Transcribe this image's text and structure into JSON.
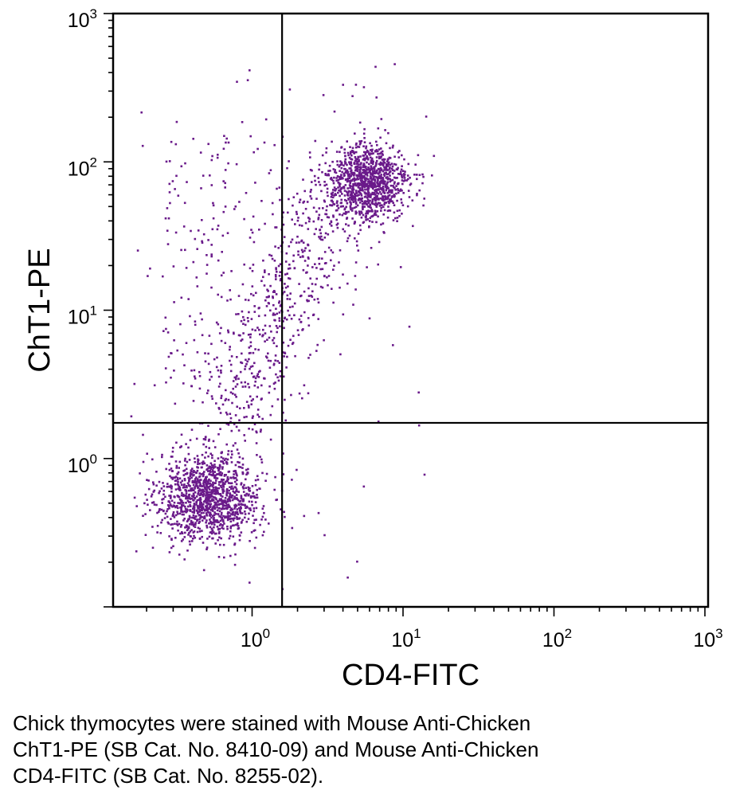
{
  "chart_data": {
    "type": "scatter",
    "plot_kind": "flow cytometry dot plot (log-log) with quadrant gates",
    "xlabel": "CD4-FITC",
    "ylabel": "ChT1-PE",
    "x_scale": "log10",
    "y_scale": "log10",
    "xlim": [
      0.12,
      1050
    ],
    "ylim": [
      0.1,
      1000
    ],
    "x_ticks": [
      {
        "value": 1,
        "base": "10",
        "exp": "0"
      },
      {
        "value": 10,
        "base": "10",
        "exp": "1"
      },
      {
        "value": 100,
        "base": "10",
        "exp": "2"
      },
      {
        "value": 1000,
        "base": "10",
        "exp": "3"
      }
    ],
    "y_ticks": [
      {
        "value": 1,
        "base": "10",
        "exp": "0"
      },
      {
        "value": 10,
        "base": "10",
        "exp": "1"
      },
      {
        "value": 100,
        "base": "10",
        "exp": "2"
      },
      {
        "value": 1000,
        "base": "10",
        "exp": "3"
      }
    ],
    "quadrant_gate": {
      "x": 1.58,
      "y": 1.74
    },
    "grid": false,
    "legend": "none",
    "point_color": "#6a1a8a",
    "populations": [
      {
        "name": "double-negative",
        "x_center": 0.52,
        "y_center": 0.55,
        "x_spread_log": 0.17,
        "y_spread_log": 0.15,
        "count": 1250
      },
      {
        "name": "double-positive",
        "x_center": 5.8,
        "y_center": 72,
        "x_spread_log": 0.14,
        "y_spread_log": 0.13,
        "count": 1050
      },
      {
        "name": "transition",
        "x_start": 0.6,
        "y_start": 1.5,
        "x_end": 4.0,
        "y_end": 70,
        "count": 550
      },
      {
        "name": "upper-left-scatter",
        "x_range": [
          0.25,
          1.6
        ],
        "y_range": [
          3.0,
          150
        ],
        "count": 180
      },
      {
        "name": "sparse",
        "x_range": [
          0.15,
          16
        ],
        "y_range": [
          0.13,
          500
        ],
        "count": 90
      }
    ]
  },
  "caption_lines": [
    "Chick thymocytes were stained with Mouse Anti-Chicken",
    "ChT1-PE (SB Cat. No. 8410-09) and Mouse Anti-Chicken",
    "CD4-FITC (SB Cat. No. 8255-02)."
  ]
}
